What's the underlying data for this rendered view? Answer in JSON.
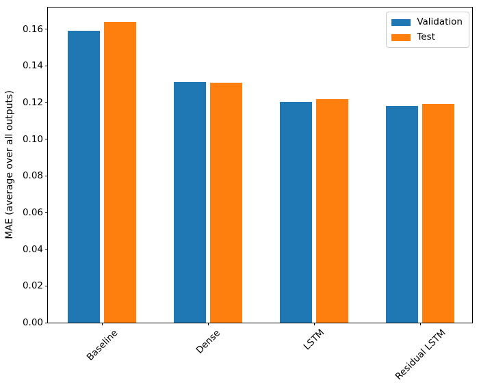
{
  "chart_data": {
    "type": "bar",
    "title": "",
    "xlabel": "",
    "ylabel": "MAE (average over all outputs)",
    "categories": [
      "Baseline",
      "Dense",
      "LSTM",
      "Residual LSTM"
    ],
    "series": [
      {
        "name": "Validation",
        "color": "#1f77b4",
        "values": [
          0.159,
          0.131,
          0.1202,
          0.1183
        ]
      },
      {
        "name": "Test",
        "color": "#ff7f0e",
        "values": [
          0.1641,
          0.1307,
          0.1217,
          0.1193
        ]
      }
    ],
    "yticks": [
      0.0,
      0.02,
      0.04,
      0.06,
      0.08,
      0.1,
      0.12,
      0.14,
      0.16
    ],
    "ytick_labels": [
      "0.00",
      "0.02",
      "0.04",
      "0.06",
      "0.08",
      "0.10",
      "0.12",
      "0.14",
      "0.16"
    ],
    "ylim": [
      0,
      0.1718
    ],
    "xlim": [
      -0.51,
      3.49
    ],
    "bar_width": 0.3,
    "bar_offset": 0.17,
    "x_tick_rotation": 45,
    "grid": false,
    "legend_position": "upper right",
    "spine_color": "#000000",
    "background": "#ffffff"
  }
}
